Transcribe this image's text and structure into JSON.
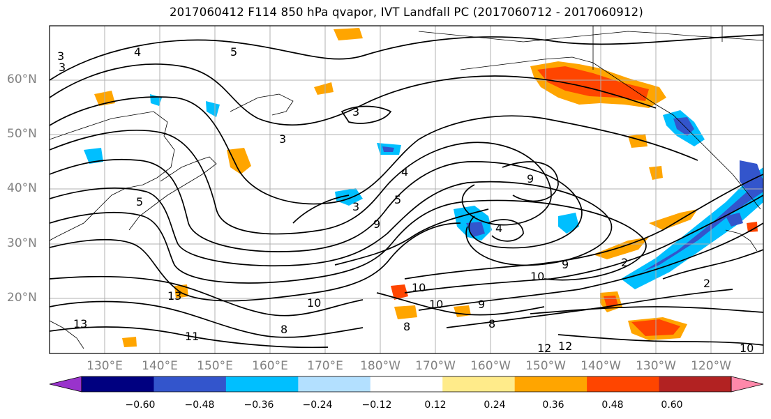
{
  "title": "2017060412 F114 850 hPa qvapor, IVT Landfall PC (2017060712 - 2017060912)",
  "lat_labels": [
    "60°N",
    "50°N",
    "40°N",
    "30°N",
    "20°N"
  ],
  "lon_labels": [
    "130°E",
    "140°E",
    "150°E",
    "160°E",
    "170°E",
    "180°W",
    "170°W",
    "160°W",
    "150°W",
    "140°W",
    "130°W",
    "120°W"
  ],
  "colorbar": {
    "ticks": [
      "−0.60",
      "−0.48",
      "−0.36",
      "−0.24",
      "−0.12",
      "0.12",
      "0.24",
      "0.36",
      "0.48",
      "0.60"
    ],
    "colors": [
      "#9933cc",
      "#000080",
      "#3355cc",
      "#00bfff",
      "#b3e0ff",
      "#ffffff",
      "#ffeb8a",
      "#ffa500",
      "#ff4500",
      "#b22222",
      "#ff88aa"
    ]
  },
  "contour_labels": [
    "3",
    "4",
    "5",
    "3",
    "3",
    "2",
    "3",
    "3",
    "4",
    "5",
    "9",
    "9",
    "4",
    "10",
    "10",
    "12",
    "13",
    "11",
    "10",
    "9",
    "8",
    "9",
    "10",
    "13",
    "12",
    "2",
    "10",
    "5",
    "8",
    "8"
  ]
}
